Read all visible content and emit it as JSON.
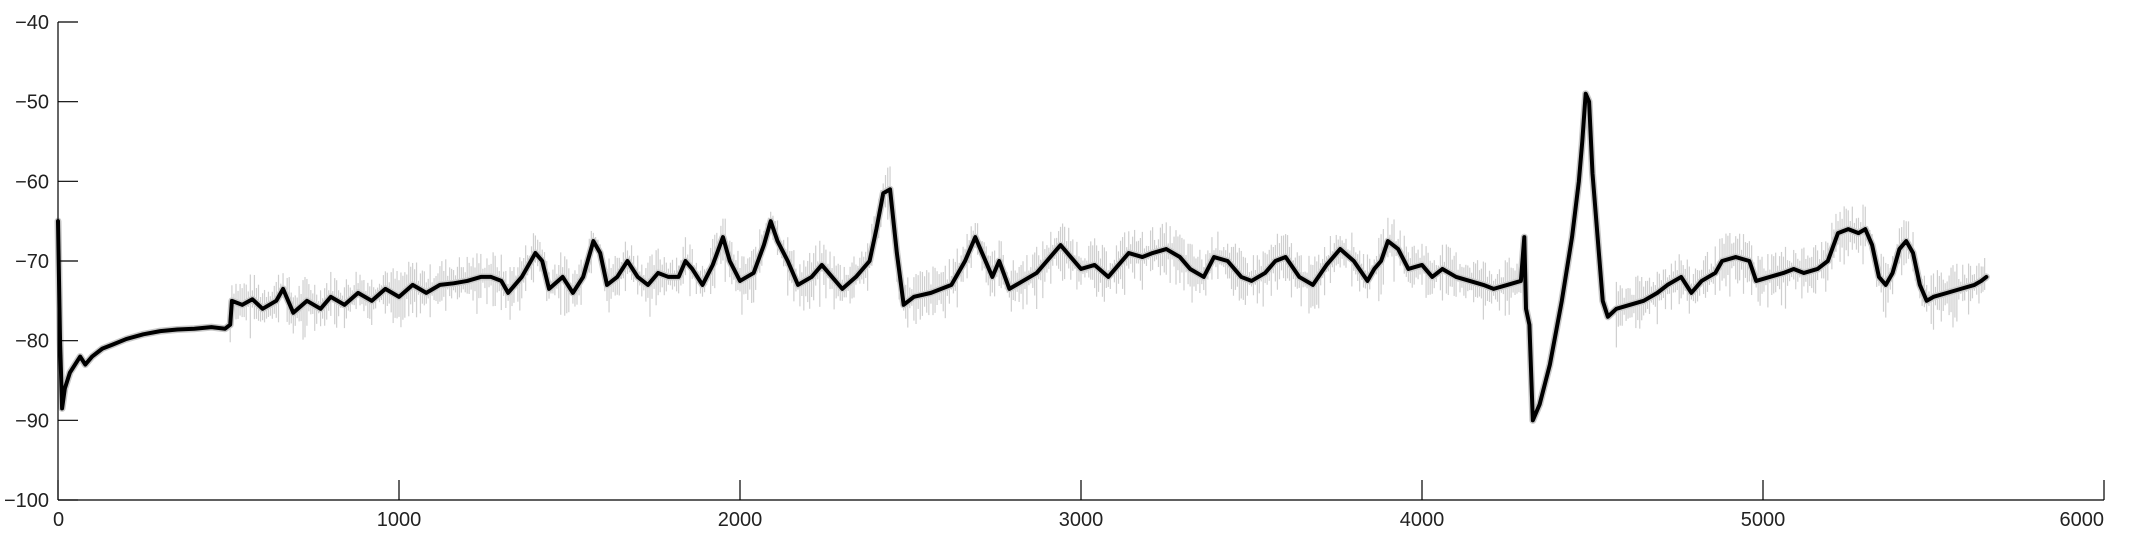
{
  "chart_data": {
    "type": "line",
    "title": "",
    "xlabel": "",
    "ylabel": "",
    "xlim": [
      0,
      6000
    ],
    "ylim": [
      -100,
      -40
    ],
    "grid": false,
    "x_ticks": [
      0,
      1000,
      2000,
      3000,
      4000,
      5000,
      6000
    ],
    "y_ticks": [
      -40,
      -50,
      -60,
      -70,
      -80,
      -90,
      -100
    ],
    "x_tick_labels": [
      "0",
      "1000",
      "2000",
      "3000",
      "4000",
      "5000",
      "6000"
    ],
    "y_tick_labels": [
      "−40",
      "−50",
      "−60",
      "−70",
      "−80",
      "−90",
      "−100"
    ],
    "colors": {
      "mean": "#000000",
      "band": "#c9c9c9",
      "axis": "#000000"
    },
    "series": [
      {
        "style": "mean trace with shaded variability band",
        "points": [
          [
            0,
            -65
          ],
          [
            6,
            -80
          ],
          [
            12,
            -88.5
          ],
          [
            20,
            -86
          ],
          [
            35,
            -84
          ],
          [
            50,
            -83
          ],
          [
            65,
            -82
          ],
          [
            80,
            -83
          ],
          [
            100,
            -82
          ],
          [
            130,
            -81
          ],
          [
            160,
            -80.5
          ],
          [
            200,
            -79.8
          ],
          [
            250,
            -79.2
          ],
          [
            300,
            -78.8
          ],
          [
            350,
            -78.6
          ],
          [
            400,
            -78.5
          ],
          [
            450,
            -78.3
          ],
          [
            490,
            -78.5
          ],
          [
            505,
            -78
          ],
          [
            510,
            -75
          ],
          [
            540,
            -75.5
          ],
          [
            570,
            -74.8
          ],
          [
            600,
            -76
          ],
          [
            640,
            -75
          ],
          [
            660,
            -73.5
          ],
          [
            690,
            -76.5
          ],
          [
            730,
            -75
          ],
          [
            770,
            -76
          ],
          [
            800,
            -74.5
          ],
          [
            840,
            -75.5
          ],
          [
            880,
            -74
          ],
          [
            920,
            -75
          ],
          [
            960,
            -73.5
          ],
          [
            1000,
            -74.5
          ],
          [
            1040,
            -73
          ],
          [
            1080,
            -74
          ],
          [
            1120,
            -73
          ],
          [
            1160,
            -72.8
          ],
          [
            1200,
            -72.5
          ],
          [
            1240,
            -72
          ],
          [
            1270,
            -72
          ],
          [
            1300,
            -72.5
          ],
          [
            1320,
            -74
          ],
          [
            1360,
            -72
          ],
          [
            1400,
            -69
          ],
          [
            1420,
            -70
          ],
          [
            1440,
            -73.5
          ],
          [
            1480,
            -72
          ],
          [
            1510,
            -74
          ],
          [
            1540,
            -72
          ],
          [
            1570,
            -67.5
          ],
          [
            1590,
            -69
          ],
          [
            1610,
            -73
          ],
          [
            1640,
            -72
          ],
          [
            1670,
            -70
          ],
          [
            1700,
            -72
          ],
          [
            1730,
            -73
          ],
          [
            1760,
            -71.5
          ],
          [
            1790,
            -72
          ],
          [
            1820,
            -72
          ],
          [
            1840,
            -70
          ],
          [
            1860,
            -71
          ],
          [
            1890,
            -73
          ],
          [
            1920,
            -70.5
          ],
          [
            1950,
            -67
          ],
          [
            1970,
            -70
          ],
          [
            2000,
            -72.5
          ],
          [
            2040,
            -71.5
          ],
          [
            2070,
            -68
          ],
          [
            2090,
            -65
          ],
          [
            2110,
            -67.5
          ],
          [
            2140,
            -70
          ],
          [
            2170,
            -73
          ],
          [
            2210,
            -72
          ],
          [
            2240,
            -70.5
          ],
          [
            2270,
            -72
          ],
          [
            2300,
            -73.5
          ],
          [
            2340,
            -72
          ],
          [
            2380,
            -70
          ],
          [
            2400,
            -66
          ],
          [
            2420,
            -61.5
          ],
          [
            2440,
            -61
          ],
          [
            2460,
            -69
          ],
          [
            2480,
            -75.5
          ],
          [
            2510,
            -74.5
          ],
          [
            2560,
            -74
          ],
          [
            2620,
            -73
          ],
          [
            2660,
            -70
          ],
          [
            2690,
            -67
          ],
          [
            2710,
            -69
          ],
          [
            2740,
            -72
          ],
          [
            2760,
            -70
          ],
          [
            2790,
            -73.5
          ],
          [
            2830,
            -72.5
          ],
          [
            2870,
            -71.5
          ],
          [
            2900,
            -70
          ],
          [
            2940,
            -68
          ],
          [
            2970,
            -69.5
          ],
          [
            3000,
            -71
          ],
          [
            3040,
            -70.5
          ],
          [
            3080,
            -72
          ],
          [
            3110,
            -70.5
          ],
          [
            3140,
            -69
          ],
          [
            3180,
            -69.5
          ],
          [
            3210,
            -69
          ],
          [
            3250,
            -68.5
          ],
          [
            3290,
            -69.5
          ],
          [
            3320,
            -71
          ],
          [
            3360,
            -72
          ],
          [
            3390,
            -69.5
          ],
          [
            3430,
            -70
          ],
          [
            3470,
            -72
          ],
          [
            3500,
            -72.5
          ],
          [
            3540,
            -71.5
          ],
          [
            3570,
            -70
          ],
          [
            3600,
            -69.5
          ],
          [
            3640,
            -72
          ],
          [
            3680,
            -73
          ],
          [
            3720,
            -70.5
          ],
          [
            3760,
            -68.5
          ],
          [
            3800,
            -70
          ],
          [
            3840,
            -72.5
          ],
          [
            3860,
            -71
          ],
          [
            3880,
            -70
          ],
          [
            3900,
            -67.5
          ],
          [
            3930,
            -68.5
          ],
          [
            3960,
            -71
          ],
          [
            4000,
            -70.5
          ],
          [
            4030,
            -72
          ],
          [
            4060,
            -71
          ],
          [
            4100,
            -72
          ],
          [
            4140,
            -72.5
          ],
          [
            4180,
            -73
          ],
          [
            4210,
            -73.5
          ],
          [
            4250,
            -73
          ],
          [
            4290,
            -72.5
          ],
          [
            4300,
            -67
          ],
          [
            4305,
            -76
          ],
          [
            4315,
            -78
          ],
          [
            4325,
            -90
          ],
          [
            4345,
            -88
          ],
          [
            4375,
            -83
          ],
          [
            4410,
            -75
          ],
          [
            4440,
            -67
          ],
          [
            4460,
            -60
          ],
          [
            4470,
            -55
          ],
          [
            4480,
            -49
          ],
          [
            4490,
            -50
          ],
          [
            4500,
            -59
          ],
          [
            4515,
            -67
          ],
          [
            4530,
            -75
          ],
          [
            4545,
            -77
          ],
          [
            4570,
            -76
          ],
          [
            4610,
            -75.5
          ],
          [
            4650,
            -75
          ],
          [
            4690,
            -74
          ],
          [
            4720,
            -73
          ],
          [
            4760,
            -72
          ],
          [
            4790,
            -74
          ],
          [
            4820,
            -72.5
          ],
          [
            4860,
            -71.5
          ],
          [
            4880,
            -70
          ],
          [
            4920,
            -69.5
          ],
          [
            4960,
            -70
          ],
          [
            4980,
            -72.5
          ],
          [
            5020,
            -72
          ],
          [
            5060,
            -71.5
          ],
          [
            5090,
            -71
          ],
          [
            5120,
            -71.5
          ],
          [
            5160,
            -71
          ],
          [
            5190,
            -70
          ],
          [
            5220,
            -66.5
          ],
          [
            5250,
            -66
          ],
          [
            5280,
            -66.5
          ],
          [
            5300,
            -66
          ],
          [
            5320,
            -68
          ],
          [
            5340,
            -72
          ],
          [
            5360,
            -73
          ],
          [
            5380,
            -71.5
          ],
          [
            5400,
            -68.5
          ],
          [
            5420,
            -67.5
          ],
          [
            5440,
            -69
          ],
          [
            5460,
            -73
          ],
          [
            5480,
            -75
          ],
          [
            5500,
            -74.5
          ],
          [
            5540,
            -74
          ],
          [
            5580,
            -73.5
          ],
          [
            5620,
            -73
          ],
          [
            5640,
            -72.5
          ],
          [
            5655,
            -72
          ]
        ]
      }
    ]
  }
}
